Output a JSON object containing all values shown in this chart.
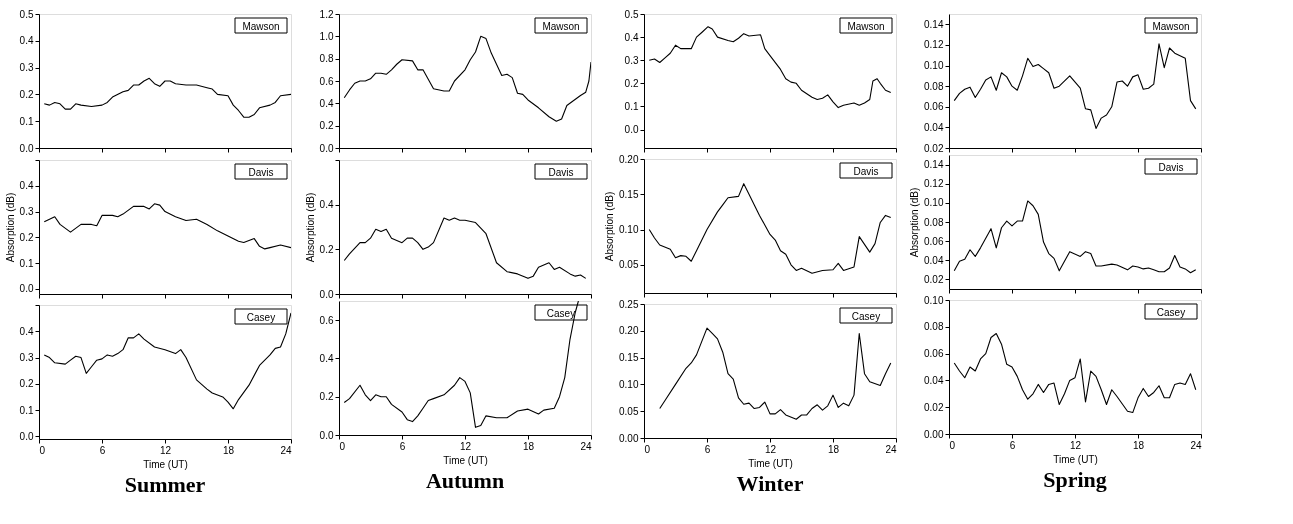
{
  "chart_data": [
    {
      "type": "line",
      "xlim": [
        0,
        24
      ],
      "xticks": [
        0,
        6,
        12,
        18,
        24
      ],
      "ylim": [
        0,
        0.5
      ],
      "yticks": [
        {
          "value": 0,
          "label": "0.0"
        },
        0.1,
        0.2,
        0.3,
        0.4,
        0.5
      ],
      "tick_labels": "y",
      "legend": "top right",
      "series": [
        {
          "name": "Mawson",
          "color": "#000000",
          "x": [
            0.5,
            1,
            1.5,
            2,
            2.5,
            3,
            3.5,
            4,
            5,
            6,
            6.5,
            7,
            8,
            8.5,
            9,
            9.5,
            10,
            10.5,
            11,
            11.5,
            12,
            12.5,
            13,
            14,
            15,
            16,
            16.5,
            17,
            18,
            18.5,
            19,
            19.5,
            20,
            20.5,
            21,
            22,
            22.5,
            23,
            24
          ],
          "values": [
            0.165,
            0.16,
            0.17,
            0.165,
            0.145,
            0.145,
            0.165,
            0.16,
            0.155,
            0.16,
            0.17,
            0.19,
            0.21,
            0.215,
            0.235,
            0.235,
            0.25,
            0.26,
            0.24,
            0.23,
            0.25,
            0.25,
            0.24,
            0.235,
            0.235,
            0.225,
            0.22,
            0.2,
            0.195,
            0.16,
            0.14,
            0.115,
            0.115,
            0.125,
            0.15,
            0.16,
            0.17,
            0.195,
            0.2
          ]
        }
      ]
    },
    {
      "type": "line",
      "xlim": [
        0,
        24
      ],
      "xticks": [
        0,
        6,
        12,
        18,
        24
      ],
      "ylim": [
        -0.02,
        0.5
      ],
      "yticks": [
        {
          "value": 0,
          "label": "0.0"
        },
        0.1,
        0.2,
        0.3,
        0.4,
        {
          "value": 0.5,
          "label": null
        }
      ],
      "tick_labels": "y",
      "legend": "top right",
      "ylabel": "Absorption (dB)",
      "series": [
        {
          "name": "Davis",
          "color": "#000000",
          "x": [
            0.5,
            1,
            1.5,
            2,
            3,
            4,
            5,
            5.5,
            6,
            7,
            7.5,
            8,
            9,
            10,
            10.5,
            11,
            11.5,
            12,
            13,
            14,
            15,
            16,
            17,
            18,
            19,
            19.5,
            20.5,
            21,
            21.5,
            22,
            23,
            24
          ],
          "values": [
            0.26,
            0.27,
            0.28,
            0.25,
            0.22,
            0.25,
            0.25,
            0.245,
            0.285,
            0.285,
            0.28,
            0.29,
            0.32,
            0.32,
            0.31,
            0.33,
            0.325,
            0.3,
            0.28,
            0.265,
            0.27,
            0.25,
            0.225,
            0.205,
            0.185,
            0.18,
            0.195,
            0.165,
            0.155,
            0.16,
            0.17,
            0.16
          ]
        }
      ]
    },
    {
      "type": "line",
      "xlim": [
        0,
        24
      ],
      "xticks": [
        0,
        6,
        12,
        18,
        24
      ],
      "ylim": [
        -0.01,
        0.5
      ],
      "yticks": [
        {
          "value": 0,
          "label": "0.0"
        },
        0.1,
        0.2,
        0.3,
        0.4,
        {
          "value": 0.5,
          "label": null
        }
      ],
      "legend": "top right",
      "xlabel": "Time (UT)",
      "title": "Summer",
      "series": [
        {
          "name": "Casey",
          "color": "#000000",
          "x": [
            0.5,
            1,
            1.5,
            2.5,
            3,
            3.5,
            4,
            4.5,
            5,
            5.5,
            6,
            6.5,
            7,
            7.5,
            8,
            8.5,
            9,
            9.5,
            10,
            11,
            12,
            13,
            13.5,
            14,
            15,
            16,
            16.5,
            17.5,
            18,
            18.5,
            19,
            20,
            21,
            22,
            22.5,
            23,
            23.5,
            24
          ],
          "values": [
            0.31,
            0.3,
            0.28,
            0.275,
            0.29,
            0.305,
            0.3,
            0.24,
            0.265,
            0.29,
            0.295,
            0.31,
            0.305,
            0.315,
            0.33,
            0.375,
            0.375,
            0.39,
            0.37,
            0.34,
            0.33,
            0.315,
            0.33,
            0.3,
            0.215,
            0.18,
            0.165,
            0.15,
            0.13,
            0.105,
            0.14,
            0.195,
            0.27,
            0.31,
            0.335,
            0.34,
            0.39,
            0.47
          ]
        }
      ]
    },
    {
      "type": "line",
      "xlim": [
        0,
        24
      ],
      "xticks": [
        0,
        6,
        12,
        18,
        24
      ],
      "ylim": [
        0,
        1.2
      ],
      "yticks": [
        {
          "value": 0,
          "label": "0.0"
        },
        0.2,
        0.4,
        0.6,
        0.8,
        {
          "value": 1,
          "label": "1.0"
        },
        1.2
      ],
      "tick_labels": "y",
      "legend": "top right",
      "series": [
        {
          "name": "Mawson",
          "color": "#000000",
          "x": [
            0.5,
            1,
            1.5,
            2,
            2.5,
            3,
            3.5,
            4,
            4.5,
            5,
            5.5,
            6,
            7,
            7.5,
            8,
            9,
            10,
            10.5,
            11,
            12,
            12.5,
            13,
            13.5,
            14,
            14.5,
            15,
            15.5,
            16,
            16.5,
            17,
            17.5,
            18,
            19,
            20,
            20.7,
            21.2,
            21.7,
            23,
            23.5,
            23.8,
            24
          ],
          "values": [
            0.45,
            0.52,
            0.58,
            0.6,
            0.6,
            0.62,
            0.67,
            0.67,
            0.66,
            0.7,
            0.75,
            0.79,
            0.78,
            0.7,
            0.7,
            0.53,
            0.51,
            0.51,
            0.6,
            0.7,
            0.79,
            0.86,
            1.0,
            0.98,
            0.85,
            0.75,
            0.65,
            0.66,
            0.63,
            0.49,
            0.48,
            0.43,
            0.36,
            0.28,
            0.24,
            0.26,
            0.38,
            0.47,
            0.5,
            0.6,
            0.77
          ]
        }
      ]
    },
    {
      "type": "line",
      "xlim": [
        0,
        24
      ],
      "xticks": [
        0,
        6,
        12,
        18,
        24
      ],
      "ylim": [
        0,
        0.6
      ],
      "yticks": [
        {
          "value": 0,
          "label": "0.0"
        },
        0.2,
        0.4,
        {
          "value": 0.6,
          "label": null
        }
      ],
      "tick_labels": "y",
      "legend": "top right",
      "ylabel": "Absorption (dB)",
      "series": [
        {
          "name": "Davis",
          "color": "#000000",
          "x": [
            0.5,
            1,
            2,
            2.5,
            3,
            3.5,
            4,
            4.5,
            5,
            6,
            6.5,
            7,
            7.5,
            8,
            8.5,
            9,
            10,
            10.5,
            11,
            11.5,
            12,
            13,
            14,
            15,
            16,
            17,
            18,
            18.5,
            19,
            20,
            20.5,
            21,
            22,
            22.5,
            23,
            23.5
          ],
          "values": [
            0.15,
            0.18,
            0.23,
            0.23,
            0.25,
            0.29,
            0.28,
            0.29,
            0.25,
            0.23,
            0.25,
            0.25,
            0.23,
            0.2,
            0.21,
            0.23,
            0.34,
            0.33,
            0.34,
            0.33,
            0.33,
            0.32,
            0.27,
            0.14,
            0.1,
            0.09,
            0.07,
            0.08,
            0.12,
            0.14,
            0.11,
            0.12,
            0.09,
            0.08,
            0.085,
            0.07
          ]
        }
      ]
    },
    {
      "type": "line",
      "xlim": [
        0,
        24
      ],
      "xticks": [
        0,
        6,
        12,
        18,
        24
      ],
      "ylim": [
        0,
        0.7
      ],
      "yticks": [
        {
          "value": 0,
          "label": "0.0"
        },
        0.2,
        0.4,
        0.6
      ],
      "legend": "top right",
      "xlabel": "Time (UT)",
      "title": "Autumn",
      "series": [
        {
          "name": "Casey",
          "color": "#000000",
          "x": [
            0.5,
            1,
            2,
            2.5,
            3,
            3.5,
            4,
            4.5,
            5,
            6,
            6.5,
            7,
            7.5,
            8,
            8.5,
            9,
            10,
            11,
            11.5,
            12,
            12.5,
            13,
            13.5,
            14,
            15,
            16,
            17,
            18,
            19,
            19.5,
            20.5,
            21,
            21.5,
            22,
            22.5,
            22.8
          ],
          "values": [
            0.17,
            0.19,
            0.26,
            0.21,
            0.18,
            0.21,
            0.2,
            0.2,
            0.16,
            0.12,
            0.08,
            0.07,
            0.1,
            0.14,
            0.18,
            0.19,
            0.21,
            0.26,
            0.3,
            0.28,
            0.22,
            0.04,
            0.05,
            0.1,
            0.09,
            0.09,
            0.125,
            0.135,
            0.11,
            0.13,
            0.14,
            0.2,
            0.3,
            0.5,
            0.64,
            0.7
          ]
        }
      ]
    },
    {
      "type": "line",
      "xlim": [
        0,
        24
      ],
      "xticks": [
        0,
        6,
        12,
        18,
        24
      ],
      "ylim": [
        -0.08,
        0.5
      ],
      "yticks": [
        {
          "value": 0,
          "label": "0.0"
        },
        0.1,
        0.2,
        0.3,
        0.4,
        0.5
      ],
      "tick_labels": "y",
      "legend": "top right",
      "series": [
        {
          "name": "Mawson",
          "color": "#000000",
          "x": [
            0.5,
            1,
            1.5,
            2,
            2.5,
            3,
            3.5,
            4.5,
            5,
            5.5,
            6.1,
            6.5,
            7,
            8,
            8.5,
            9,
            9.5,
            10,
            11.1,
            11.5,
            12,
            13,
            13.5,
            14,
            14.5,
            15,
            16,
            16.5,
            17,
            17.5,
            18,
            18.5,
            19,
            20,
            20.5,
            21,
            21.5,
            21.8,
            22.2,
            22.5,
            23,
            23.5
          ],
          "values": [
            0.3,
            0.305,
            0.29,
            0.31,
            0.33,
            0.365,
            0.35,
            0.35,
            0.4,
            0.42,
            0.445,
            0.435,
            0.4,
            0.385,
            0.38,
            0.395,
            0.415,
            0.405,
            0.41,
            0.35,
            0.32,
            0.26,
            0.22,
            0.205,
            0.2,
            0.17,
            0.14,
            0.13,
            0.135,
            0.15,
            0.12,
            0.095,
            0.105,
            0.115,
            0.105,
            0.115,
            0.13,
            0.21,
            0.22,
            0.2,
            0.17,
            0.16
          ]
        }
      ]
    },
    {
      "type": "line",
      "xlim": [
        0,
        24
      ],
      "xticks": [
        0,
        6,
        12,
        18,
        24
      ],
      "ylim": [
        0.01,
        0.2
      ],
      "yticks": [
        0.05,
        {
          "value": 0.1,
          "label": "0.10"
        },
        0.15,
        {
          "value": 0.2,
          "label": "0.20"
        }
      ],
      "tick_labels": "y",
      "legend": "top right",
      "ylabel": "Absorption (dB)",
      "series": [
        {
          "name": "Davis",
          "color": "#000000",
          "x": [
            0.5,
            1,
            1.5,
            2.5,
            3,
            3.5,
            4,
            4.5,
            5,
            6,
            7,
            7.5,
            8,
            9,
            9.5,
            10,
            11,
            12,
            12.5,
            13,
            13.5,
            14,
            14.5,
            15,
            16,
            17,
            18,
            18.5,
            19,
            20,
            20.5,
            21.5,
            22,
            22.5,
            23,
            23.5
          ],
          "values": [
            0.1,
            0.088,
            0.078,
            0.072,
            0.06,
            0.063,
            0.062,
            0.055,
            0.07,
            0.1,
            0.125,
            0.135,
            0.145,
            0.147,
            0.165,
            0.15,
            0.12,
            0.093,
            0.085,
            0.07,
            0.065,
            0.05,
            0.042,
            0.045,
            0.038,
            0.042,
            0.043,
            0.052,
            0.042,
            0.047,
            0.09,
            0.068,
            0.08,
            0.11,
            0.12,
            0.117
          ]
        }
      ]
    },
    {
      "type": "line",
      "xlim": [
        0,
        24
      ],
      "xticks": [
        0,
        6,
        12,
        18,
        24
      ],
      "ylim": [
        0,
        0.25
      ],
      "yticks": [
        {
          "value": 0,
          "label": "0.00"
        },
        0.05,
        {
          "value": 0.1,
          "label": "0.10"
        },
        0.15,
        {
          "value": 0.2,
          "label": "0.20"
        },
        0.25
      ],
      "legend": "top right",
      "xlabel": "Time (UT)",
      "title": "Winter",
      "series": [
        {
          "name": "Casey",
          "color": "#000000",
          "x": [
            1.5,
            2,
            3,
            4,
            4.5,
            5,
            6,
            6.5,
            7,
            7.5,
            8,
            8.5,
            9,
            9.5,
            10,
            10.5,
            11,
            11.5,
            12,
            12.5,
            13,
            13.5,
            14.5,
            15,
            15.5,
            16,
            16.5,
            17,
            17.5,
            18,
            18.5,
            19,
            19.5,
            20,
            20.5,
            21,
            21.5,
            22.5,
            23,
            23.5
          ],
          "values": [
            0.055,
            0.07,
            0.1,
            0.13,
            0.14,
            0.155,
            0.205,
            0.195,
            0.185,
            0.16,
            0.12,
            0.11,
            0.075,
            0.063,
            0.065,
            0.055,
            0.057,
            0.067,
            0.045,
            0.045,
            0.053,
            0.043,
            0.035,
            0.043,
            0.043,
            0.055,
            0.062,
            0.052,
            0.06,
            0.08,
            0.057,
            0.065,
            0.06,
            0.08,
            0.195,
            0.12,
            0.105,
            0.098,
            0.12,
            0.14
          ]
        }
      ]
    },
    {
      "type": "line",
      "xlim": [
        0,
        24
      ],
      "xticks": [
        0,
        6,
        12,
        18,
        24
      ],
      "ylim": [
        0.02,
        0.15
      ],
      "yticks": [
        0.02,
        0.04,
        0.06,
        0.08,
        {
          "value": 0.1,
          "label": "0.10"
        },
        0.12,
        0.14
      ],
      "tick_labels": "y",
      "legend": "top right",
      "series": [
        {
          "name": "Mawson",
          "color": "#000000",
          "x": [
            0.5,
            1,
            1.5,
            2,
            2.5,
            3,
            3.5,
            4,
            4.5,
            5,
            5.5,
            6,
            6.5,
            7,
            7.5,
            8,
            8.5,
            9,
            9.5,
            10,
            10.5,
            11.5,
            12.5,
            13,
            13.5,
            14,
            14.5,
            15,
            15.5,
            16,
            16.5,
            17,
            17.5,
            18,
            18.5,
            19,
            19.5,
            20,
            20.5,
            21,
            21.5,
            22.5,
            23,
            23.5
          ],
          "values": [
            0.066,
            0.073,
            0.077,
            0.079,
            0.069,
            0.077,
            0.086,
            0.089,
            0.076,
            0.093,
            0.089,
            0.08,
            0.076,
            0.09,
            0.107,
            0.099,
            0.101,
            0.097,
            0.093,
            0.078,
            0.08,
            0.09,
            0.078,
            0.058,
            0.057,
            0.039,
            0.049,
            0.052,
            0.06,
            0.084,
            0.085,
            0.08,
            0.089,
            0.091,
            0.077,
            0.078,
            0.082,
            0.121,
            0.098,
            0.117,
            0.112,
            0.107,
            0.066,
            0.058
          ]
        }
      ]
    },
    {
      "type": "line",
      "xlim": [
        0,
        24
      ],
      "xticks": [
        0,
        6,
        12,
        18,
        24
      ],
      "ylim": [
        0.01,
        0.15
      ],
      "yticks": [
        0.02,
        0.04,
        0.06,
        0.08,
        {
          "value": 0.1,
          "label": "0.10"
        },
        0.12,
        0.14
      ],
      "tick_labels": "y",
      "legend": "top right",
      "ylabel": "Absorption (dB)",
      "series": [
        {
          "name": "Davis",
          "color": "#000000",
          "x": [
            0.5,
            1,
            1.5,
            2,
            2.5,
            3,
            4,
            4.5,
            5,
            5.5,
            6,
            6.5,
            7,
            7.5,
            8,
            8.5,
            9,
            9.5,
            10,
            10.5,
            11.5,
            12.5,
            13,
            13.5,
            14,
            14.5,
            15.5,
            16,
            17,
            17.5,
            18,
            18.5,
            19,
            19.5,
            20,
            20.5,
            21,
            21.5,
            22,
            22.5,
            23,
            23.5
          ],
          "values": [
            0.029,
            0.039,
            0.041,
            0.051,
            0.044,
            0.053,
            0.073,
            0.053,
            0.074,
            0.081,
            0.076,
            0.081,
            0.081,
            0.102,
            0.097,
            0.088,
            0.059,
            0.047,
            0.042,
            0.029,
            0.049,
            0.044,
            0.049,
            0.047,
            0.034,
            0.034,
            0.036,
            0.035,
            0.03,
            0.034,
            0.033,
            0.031,
            0.032,
            0.03,
            0.028,
            0.028,
            0.032,
            0.045,
            0.033,
            0.031,
            0.027,
            0.03
          ]
        }
      ]
    },
    {
      "type": "line",
      "xlim": [
        0,
        24
      ],
      "xticks": [
        0,
        6,
        12,
        18,
        24
      ],
      "ylim": [
        0,
        0.1
      ],
      "yticks": [
        {
          "value": 0,
          "label": "0.00"
        },
        0.02,
        0.04,
        0.06,
        0.08,
        {
          "value": 0.1,
          "label": "0.10"
        }
      ],
      "legend": "top right",
      "xlabel": "Time (UT)",
      "title": "Spring",
      "series": [
        {
          "name": "Casey",
          "color": "#000000",
          "x": [
            0.5,
            1,
            1.5,
            2,
            2.5,
            3,
            3.5,
            4,
            4.5,
            5,
            5.5,
            6,
            6.5,
            7,
            7.5,
            8,
            8.5,
            9,
            9.5,
            10,
            10.5,
            11,
            11.5,
            12,
            12.5,
            13,
            13.5,
            14,
            14.5,
            15,
            15.5,
            16,
            17,
            17.5,
            18,
            18.5,
            19,
            19.5,
            20,
            20.5,
            21,
            21.5,
            22,
            22.5,
            23,
            23.5
          ],
          "values": [
            0.053,
            0.047,
            0.042,
            0.05,
            0.047,
            0.056,
            0.06,
            0.072,
            0.075,
            0.067,
            0.052,
            0.05,
            0.043,
            0.033,
            0.026,
            0.03,
            0.037,
            0.031,
            0.037,
            0.038,
            0.022,
            0.03,
            0.04,
            0.042,
            0.056,
            0.024,
            0.047,
            0.043,
            0.033,
            0.022,
            0.033,
            0.028,
            0.017,
            0.016,
            0.027,
            0.034,
            0.028,
            0.031,
            0.036,
            0.027,
            0.027,
            0.037,
            0.038,
            0.037,
            0.045,
            0.033
          ]
        }
      ]
    }
  ]
}
